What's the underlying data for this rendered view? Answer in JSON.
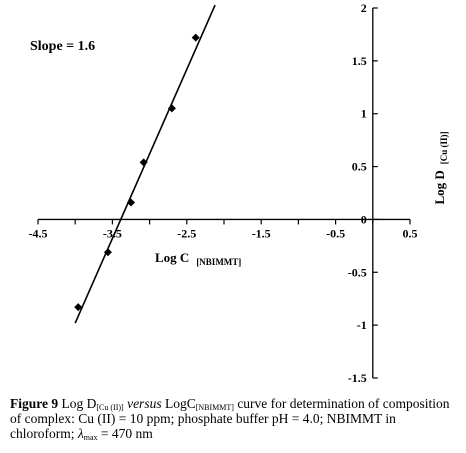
{
  "chart_data": {
    "type": "scatter",
    "title": "",
    "annotation": "Slope = 1.6",
    "xlabel": {
      "main": "Log C",
      "subscript": "[NBIMMT]"
    },
    "ylabel": {
      "main": "Log D",
      "subscript": "[Cu (II)]"
    },
    "xlim": [
      -4.5,
      0.5
    ],
    "ylim": [
      -1.5,
      2
    ],
    "x_ticks": [
      "-4.5",
      "-3.5",
      "-2.5",
      "-1.5",
      "-0.5",
      "0.5"
    ],
    "x_tick_values": [
      -4.5,
      -3.5,
      -2.5,
      -1.5,
      -0.5,
      0.5
    ],
    "y_ticks": [
      "-1.5",
      "-1",
      "-0.5",
      "0",
      "0.5",
      "1",
      "1.5",
      "2"
    ],
    "y_tick_values": [
      -1.5,
      -1,
      -0.5,
      0,
      0.5,
      1,
      1.5,
      2
    ],
    "grid": false,
    "series": [
      {
        "points": [
          {
            "x": -3.96,
            "y": -0.83
          },
          {
            "x": -3.56,
            "y": -0.31
          },
          {
            "x": -3.25,
            "y": 0.16
          },
          {
            "x": -3.08,
            "y": 0.54
          },
          {
            "x": -2.7,
            "y": 1.05
          },
          {
            "x": -2.38,
            "y": 1.72
          }
        ]
      }
    ],
    "fit_line": {
      "slope": 1.6,
      "intercept": 5.42,
      "x_range": [
        -4.0,
        -2.12
      ]
    }
  },
  "caption": {
    "figure_label": "Figure 9",
    "logd": "Log D",
    "logd_sub": "[Cu (II)]",
    "versus": "versus",
    "logc": "LogC",
    "logc_sub": "[NBIMMT]",
    "text1": "curve for determination of composition of complex: Cu (II) = 10 ppm; phosphate buffer pH = 4.0; NBIMMT in chloroform;",
    "lambda": "λ",
    "lambda_sub": "max",
    "text2": "= 470 nm"
  }
}
